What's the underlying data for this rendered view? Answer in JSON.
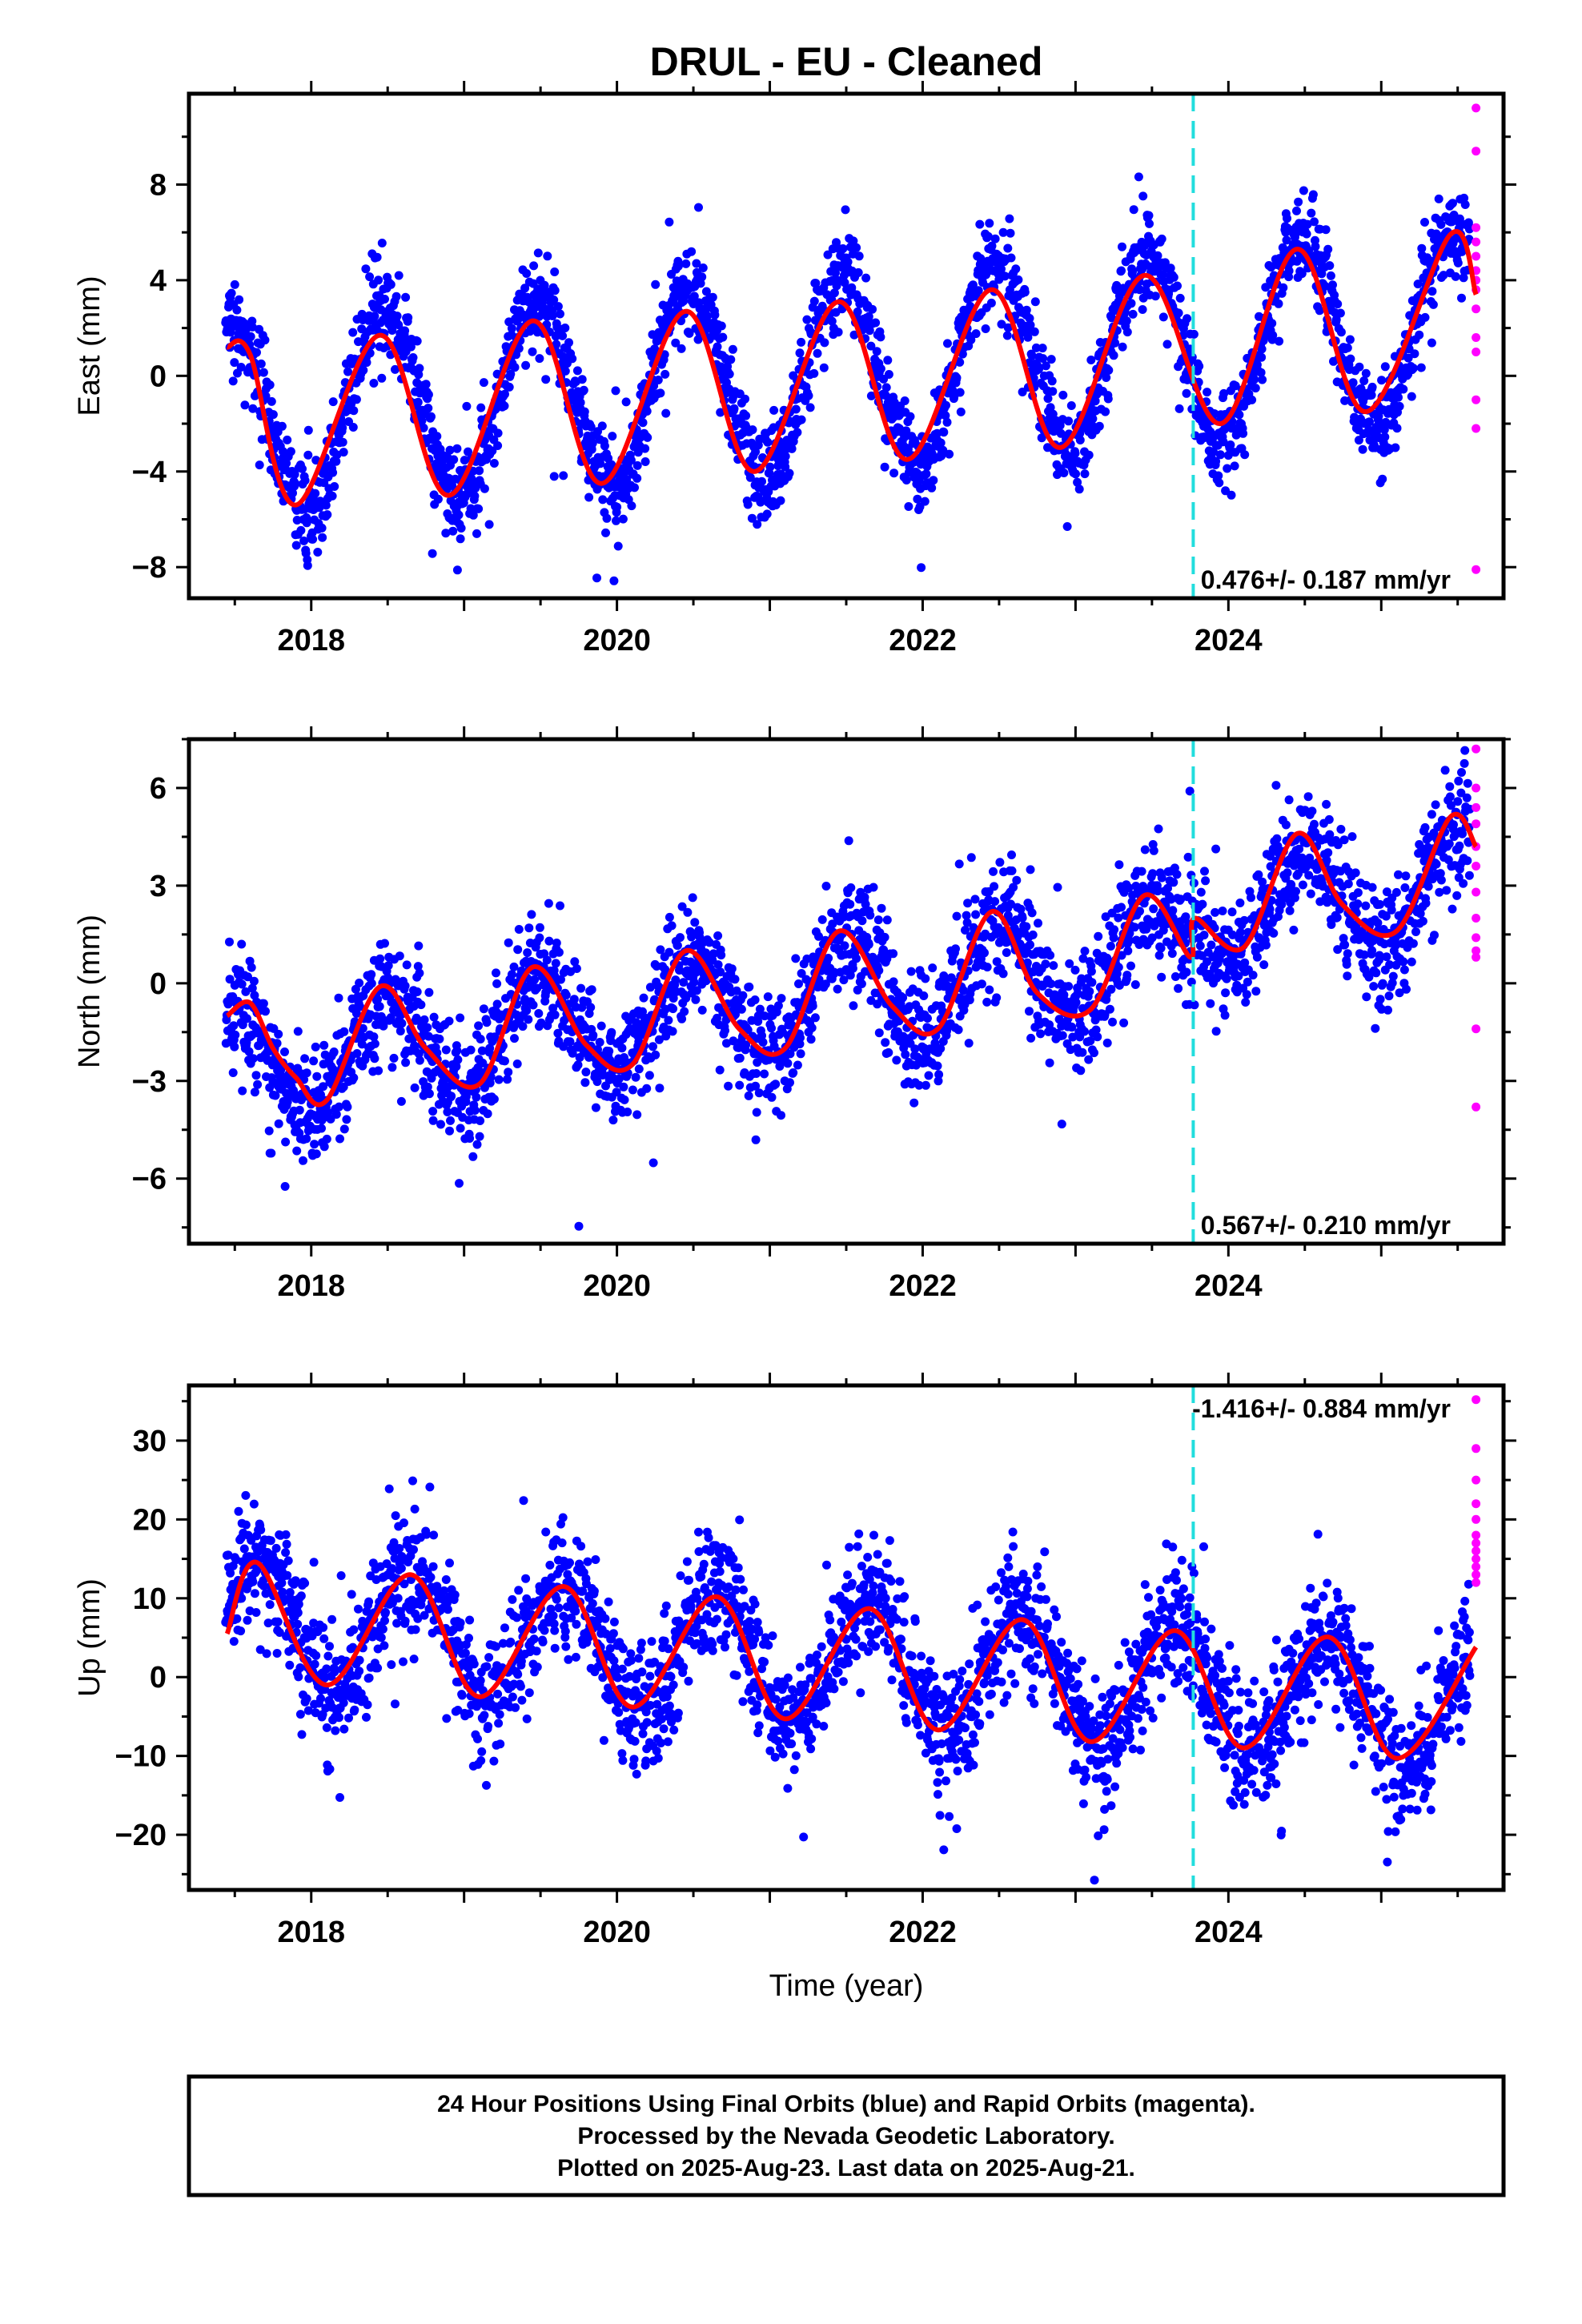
{
  "title": "DRUL  - EU - Cleaned",
  "xlabel": "Time (year)",
  "footer": {
    "line1": "24 Hour Positions Using Final Orbits (blue) and Rapid Orbits (magenta).",
    "line2": "Processed by the Nevada Geodetic Laboratory.",
    "line3": "Plotted on 2025-Aug-23. Last data on 2025-Aug-21."
  },
  "colors": {
    "final_orbits": "#0000ff",
    "rapid_orbits": "#ff00ff",
    "model_fit": "#ff0000",
    "event_line": "#22dddd"
  },
  "event_marker_year": 2023.77,
  "chart_data": [
    {
      "type": "scatter",
      "name": "east",
      "ylabel": "East (mm)",
      "xlim": [
        2017.2,
        2025.8
      ],
      "ylim": [
        -9.3,
        11.8
      ],
      "xticks": [
        2018,
        2020,
        2022,
        2024
      ],
      "yticks": [
        -8,
        -4,
        0,
        4,
        8
      ],
      "rate_label": "0.476+/- 0.187 mm/yr",
      "rate_position": "bottom-right",
      "trend": 0.476,
      "offset": -1.8,
      "annual": {
        "amplitude": 4.1,
        "peak_phase": 0.47
      },
      "noise": 1.0,
      "fit_line": [
        [
          2017.45,
          1.2
        ],
        [
          2017.6,
          0.9
        ],
        [
          2017.9,
          -5.4
        ],
        [
          2018.45,
          1.7
        ],
        [
          2018.9,
          -5.0
        ],
        [
          2019.45,
          2.3
        ],
        [
          2019.9,
          -4.5
        ],
        [
          2020.45,
          2.7
        ],
        [
          2020.9,
          -4.0
        ],
        [
          2021.45,
          3.1
        ],
        [
          2021.9,
          -3.5
        ],
        [
          2022.45,
          3.6
        ],
        [
          2022.9,
          -3.0
        ],
        [
          2023.45,
          4.2
        ],
        [
          2023.95,
          -2.0
        ],
        [
          2024.45,
          5.3
        ],
        [
          2024.9,
          -1.5
        ],
        [
          2025.45,
          5.9
        ],
        [
          2025.62,
          3.4
        ]
      ],
      "rapid_points": [
        [
          2025.62,
          11.2
        ],
        [
          2025.62,
          9.4
        ],
        [
          2025.62,
          6.2
        ],
        [
          2025.62,
          5.6
        ],
        [
          2025.62,
          5.0
        ],
        [
          2025.62,
          4.4
        ],
        [
          2025.62,
          4.0
        ],
        [
          2025.62,
          3.6
        ],
        [
          2025.62,
          2.8
        ],
        [
          2025.62,
          1.6
        ],
        [
          2025.62,
          1.0
        ],
        [
          2025.62,
          -1.0
        ],
        [
          2025.62,
          -2.2
        ],
        [
          2025.62,
          -8.1
        ]
      ]
    },
    {
      "type": "scatter",
      "name": "north",
      "ylabel": "North (mm)",
      "xlim": [
        2017.2,
        2025.8
      ],
      "ylim": [
        -8.0,
        7.5
      ],
      "xticks": [
        2018,
        2020,
        2022,
        2024
      ],
      "yticks": [
        -6,
        -3,
        0,
        3,
        6
      ],
      "rate_label": "0.567+/- 0.210 mm/yr",
      "rate_position": "bottom-right",
      "trend": 0.567,
      "offset": -2.6,
      "annual": {
        "amplitude": 1.6,
        "peak_phase": 0.5
      },
      "noise": 0.9,
      "fit_line": [
        [
          2017.45,
          -1.0
        ],
        [
          2017.6,
          -0.6
        ],
        [
          2017.75,
          -2.0
        ],
        [
          2017.9,
          -2.9
        ],
        [
          2018.1,
          -3.6
        ],
        [
          2018.45,
          -0.1
        ],
        [
          2018.75,
          -2.0
        ],
        [
          2019.1,
          -3.1
        ],
        [
          2019.45,
          0.5
        ],
        [
          2019.8,
          -1.9
        ],
        [
          2020.1,
          -2.5
        ],
        [
          2020.45,
          1.0
        ],
        [
          2020.8,
          -1.4
        ],
        [
          2021.1,
          -2.0
        ],
        [
          2021.45,
          1.6
        ],
        [
          2021.8,
          -0.7
        ],
        [
          2022.1,
          -1.4
        ],
        [
          2022.45,
          2.2
        ],
        [
          2022.75,
          -0.3
        ],
        [
          2023.1,
          -0.8
        ],
        [
          2023.45,
          2.7
        ],
        [
          2023.75,
          0.8
        ],
        [
          2023.78,
          2.0
        ],
        [
          2024.1,
          1.1
        ],
        [
          2024.45,
          4.6
        ],
        [
          2024.75,
          2.4
        ],
        [
          2025.1,
          1.6
        ],
        [
          2025.45,
          5.1
        ],
        [
          2025.62,
          4.2
        ]
      ],
      "rapid_points": [
        [
          2025.62,
          7.2
        ],
        [
          2025.62,
          6.0
        ],
        [
          2025.62,
          5.4
        ],
        [
          2025.62,
          4.9
        ],
        [
          2025.62,
          4.2
        ],
        [
          2025.62,
          3.6
        ],
        [
          2025.62,
          2.8
        ],
        [
          2025.62,
          2.0
        ],
        [
          2025.62,
          1.4
        ],
        [
          2025.62,
          1.0
        ],
        [
          2025.62,
          0.8
        ],
        [
          2025.62,
          -1.4
        ],
        [
          2025.62,
          -3.8
        ]
      ]
    },
    {
      "type": "scatter",
      "name": "up",
      "ylabel": "Up (mm)",
      "xlim": [
        2017.2,
        2025.8
      ],
      "ylim": [
        -27.0,
        37.0
      ],
      "xticks": [
        2018,
        2020,
        2022,
        2024
      ],
      "yticks": [
        -20,
        -10,
        0,
        10,
        20,
        30
      ],
      "rate_label": "-1.416+/- 0.884 mm/yr",
      "rate_position": "top-right",
      "trend": -1.416,
      "offset": 7.5,
      "annual": {
        "amplitude": 7.8,
        "peak_phase": 0.65
      },
      "noise": 4.0,
      "fit_line": [
        [
          2017.45,
          5.5
        ],
        [
          2017.65,
          14.5
        ],
        [
          2018.1,
          -1.0
        ],
        [
          2018.65,
          13.0
        ],
        [
          2019.1,
          -2.5
        ],
        [
          2019.65,
          11.5
        ],
        [
          2020.1,
          -3.8
        ],
        [
          2020.65,
          10.2
        ],
        [
          2021.1,
          -5.3
        ],
        [
          2021.65,
          8.7
        ],
        [
          2022.1,
          -6.7
        ],
        [
          2022.65,
          7.3
        ],
        [
          2023.1,
          -8.2
        ],
        [
          2023.65,
          5.9
        ],
        [
          2024.1,
          -9.0
        ],
        [
          2024.65,
          5.1
        ],
        [
          2025.1,
          -10.3
        ],
        [
          2025.62,
          3.8
        ]
      ],
      "rapid_points": [
        [
          2025.62,
          35.2
        ],
        [
          2025.62,
          29.0
        ],
        [
          2025.62,
          25.0
        ],
        [
          2025.62,
          22.0
        ],
        [
          2025.62,
          20.0
        ],
        [
          2025.62,
          18.0
        ],
        [
          2025.62,
          17.0
        ],
        [
          2025.62,
          16.0
        ],
        [
          2025.62,
          15.0
        ],
        [
          2025.62,
          14.0
        ],
        [
          2025.62,
          13.0
        ],
        [
          2025.62,
          12.0
        ]
      ]
    }
  ]
}
